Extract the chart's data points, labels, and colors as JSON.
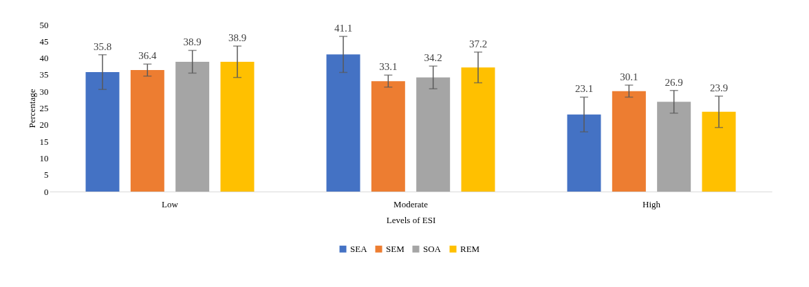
{
  "chart_data": {
    "type": "bar",
    "xlabel": "Levels of ESI",
    "ylabel": "Percentage",
    "categories": [
      "Low",
      "Moderate",
      "High"
    ],
    "series": [
      {
        "name": "SEA",
        "color": "#4472c4",
        "values": [
          35.8,
          41.1,
          23.1
        ],
        "errors": [
          5.2,
          5.4,
          5.2
        ]
      },
      {
        "name": "SEM",
        "color": "#ed7d31",
        "values": [
          36.4,
          33.1,
          30.1
        ],
        "errors": [
          1.8,
          1.8,
          1.8
        ]
      },
      {
        "name": "SOA",
        "color": "#a5a5a5",
        "values": [
          38.9,
          34.2,
          26.9
        ],
        "errors": [
          3.4,
          3.4,
          3.4
        ]
      },
      {
        "name": "REM",
        "color": "#ffc000",
        "values": [
          38.9,
          37.2,
          23.9
        ],
        "errors": [
          4.7,
          4.6,
          4.7
        ]
      }
    ],
    "ylim": [
      0,
      50
    ],
    "yticks": [
      0,
      5,
      10,
      15,
      20,
      25,
      30,
      35,
      40,
      45,
      50
    ],
    "grid": false,
    "legend": "bottom",
    "data_labels": true
  }
}
